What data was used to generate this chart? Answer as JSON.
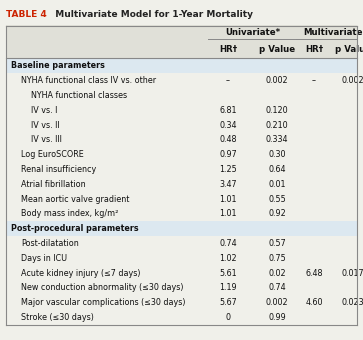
{
  "title_prefix": "TABLE 4",
  "title_rest": "  Multivariate Model for 1-Year Mortality",
  "title_color": "#cc2200",
  "bg_color": "#f0f0ea",
  "header_bg": "#e0e0d8",
  "section_bg": "#dce8f0",
  "border_color": "#888888",
  "text_color": "#111111",
  "rows": [
    {
      "label": "Baseline parameters",
      "indent": 0,
      "section": true,
      "uni_hr": "",
      "uni_p": "",
      "multi_hr": "",
      "multi_p": ""
    },
    {
      "label": "NYHA functional class IV vs. other",
      "indent": 1,
      "section": false,
      "uni_hr": "–",
      "uni_p": "0.002",
      "multi_hr": "–",
      "multi_p": "0.002"
    },
    {
      "label": "NYHA functional classes",
      "indent": 2,
      "section": false,
      "uni_hr": "",
      "uni_p": "",
      "multi_hr": "",
      "multi_p": ""
    },
    {
      "label": "IV vs. I",
      "indent": 2,
      "section": false,
      "uni_hr": "6.81",
      "uni_p": "0.120",
      "multi_hr": "",
      "multi_p": ""
    },
    {
      "label": "IV vs. II",
      "indent": 2,
      "section": false,
      "uni_hr": "0.34",
      "uni_p": "0.210",
      "multi_hr": "",
      "multi_p": ""
    },
    {
      "label": "IV vs. III",
      "indent": 2,
      "section": false,
      "uni_hr": "0.48",
      "uni_p": "0.334",
      "multi_hr": "",
      "multi_p": ""
    },
    {
      "label": "Log EuroSCORE",
      "indent": 1,
      "section": false,
      "uni_hr": "0.97",
      "uni_p": "0.30",
      "multi_hr": "",
      "multi_p": ""
    },
    {
      "label": "Renal insufficiency",
      "indent": 1,
      "section": false,
      "uni_hr": "1.25",
      "uni_p": "0.64",
      "multi_hr": "",
      "multi_p": ""
    },
    {
      "label": "Atrial fibrillation",
      "indent": 1,
      "section": false,
      "uni_hr": "3.47",
      "uni_p": "0.01",
      "multi_hr": "",
      "multi_p": ""
    },
    {
      "label": "Mean aortic valve gradient",
      "indent": 1,
      "section": false,
      "uni_hr": "1.01",
      "uni_p": "0.55",
      "multi_hr": "",
      "multi_p": ""
    },
    {
      "label": "Body mass index, kg/m²",
      "indent": 1,
      "section": false,
      "uni_hr": "1.01",
      "uni_p": "0.92",
      "multi_hr": "",
      "multi_p": ""
    },
    {
      "label": "Post-procedural parameters",
      "indent": 0,
      "section": true,
      "uni_hr": "",
      "uni_p": "",
      "multi_hr": "",
      "multi_p": ""
    },
    {
      "label": "Post-dilatation",
      "indent": 1,
      "section": false,
      "uni_hr": "0.74",
      "uni_p": "0.57",
      "multi_hr": "",
      "multi_p": ""
    },
    {
      "label": "Days in ICU",
      "indent": 1,
      "section": false,
      "uni_hr": "1.02",
      "uni_p": "0.75",
      "multi_hr": "",
      "multi_p": ""
    },
    {
      "label": "Acute kidney injury (≤7 days)",
      "indent": 1,
      "section": false,
      "uni_hr": "5.61",
      "uni_p": "0.02",
      "multi_hr": "6.48",
      "multi_p": "0.017"
    },
    {
      "label": "New conduction abnormality (≤30 days)",
      "indent": 1,
      "section": false,
      "uni_hr": "1.19",
      "uni_p": "0.74",
      "multi_hr": "",
      "multi_p": ""
    },
    {
      "label": "Major vascular complications (≤30 days)",
      "indent": 1,
      "section": false,
      "uni_hr": "5.67",
      "uni_p": "0.002",
      "multi_hr": "4.60",
      "multi_p": "0.023"
    },
    {
      "label": "Stroke (≤30 days)",
      "indent": 1,
      "section": false,
      "uni_hr": "0",
      "uni_p": "0.99",
      "multi_hr": "",
      "multi_p": ""
    }
  ],
  "font_size": 5.8,
  "title_font_size": 6.5,
  "header_font_size": 6.2
}
